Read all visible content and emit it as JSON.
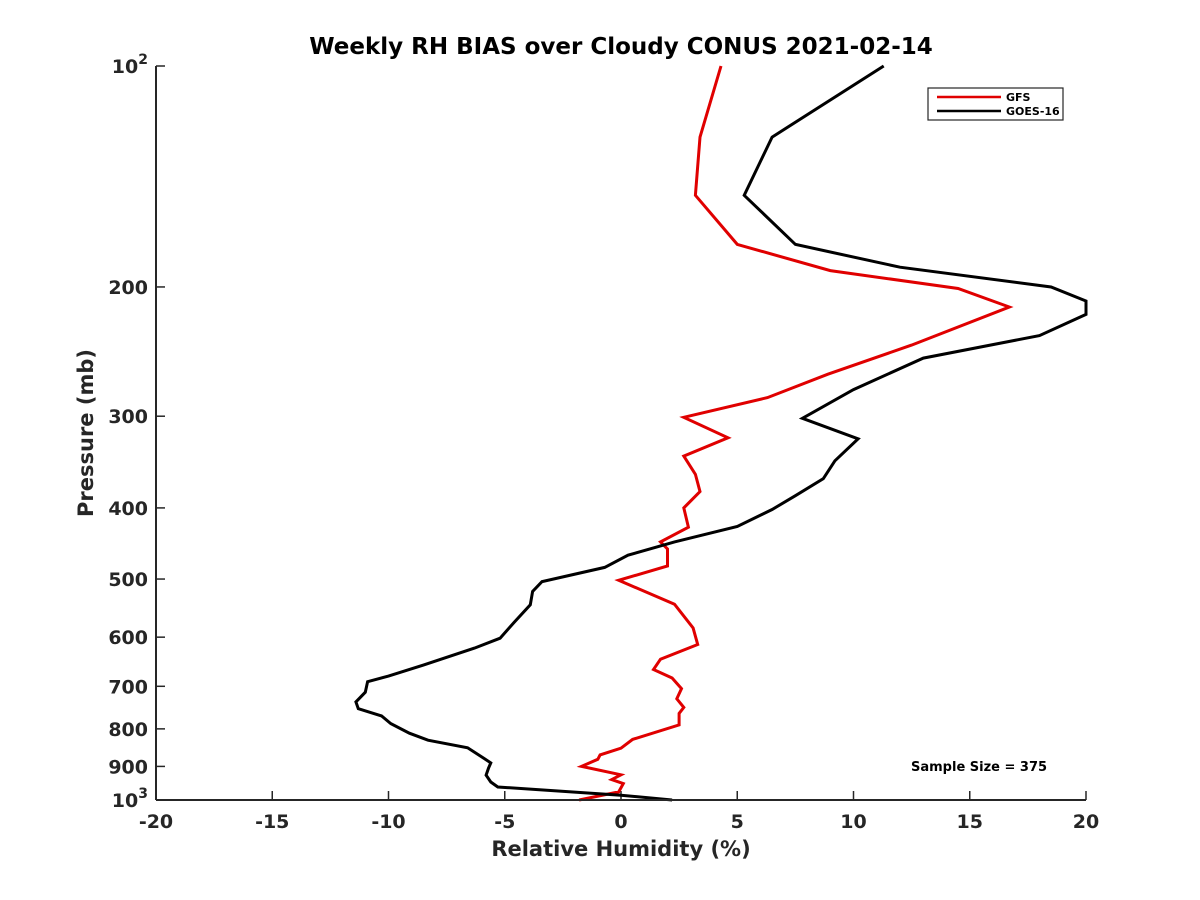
{
  "chart_data": {
    "type": "line",
    "title": "Weekly RH BIAS over Cloudy CONUS 2021-02-14",
    "xlabel": "Relative Humidity (%)",
    "ylabel": "Pressure (mb)",
    "xlim": [
      -20,
      20
    ],
    "ylim": [
      100,
      1000
    ],
    "y_scale": "log",
    "y_reversed": true,
    "x_ticks": [
      -20,
      -15,
      -10,
      -5,
      0,
      5,
      10,
      15,
      20
    ],
    "x_tick_labels": [
      "-20",
      "-15",
      "-10",
      "-5",
      "0",
      "5",
      "10",
      "15",
      "20"
    ],
    "y_ticks": [
      {
        "value": 100,
        "base": "10",
        "exp": "2"
      },
      {
        "value": 200,
        "label": "200"
      },
      {
        "value": 300,
        "label": "300"
      },
      {
        "value": 400,
        "label": "400"
      },
      {
        "value": 500,
        "label": "500"
      },
      {
        "value": 600,
        "label": "600"
      },
      {
        "value": 700,
        "label": "700"
      },
      {
        "value": 800,
        "label": "800"
      },
      {
        "value": 900,
        "label": "900"
      },
      {
        "value": 1000,
        "base": "10",
        "exp": "3"
      }
    ],
    "grid": false,
    "legend_position": "top-right",
    "annotation": "Sample Size = 375",
    "series": [
      {
        "name": "GFS",
        "color": "#e00000",
        "points": [
          [
            4.3,
            100
          ],
          [
            3.4,
            125
          ],
          [
            3.2,
            150
          ],
          [
            5.0,
            175
          ],
          [
            9.0,
            190
          ],
          [
            14.5,
            201
          ],
          [
            16.7,
            213
          ],
          [
            12.5,
            240
          ],
          [
            8.9,
            263
          ],
          [
            6.3,
            283
          ],
          [
            2.7,
            301
          ],
          [
            4.6,
            321
          ],
          [
            2.7,
            340
          ],
          [
            3.2,
            360
          ],
          [
            3.4,
            380
          ],
          [
            2.7,
            400
          ],
          [
            2.9,
            425
          ],
          [
            1.7,
            445
          ],
          [
            2.0,
            455
          ],
          [
            2.0,
            480
          ],
          [
            -0.1,
            502
          ],
          [
            2.3,
            541
          ],
          [
            3.1,
            583
          ],
          [
            3.3,
            614
          ],
          [
            1.7,
            643
          ],
          [
            1.4,
            664
          ],
          [
            2.2,
            682
          ],
          [
            2.6,
            705
          ],
          [
            2.4,
            728
          ],
          [
            2.7,
            748
          ],
          [
            2.5,
            762
          ],
          [
            2.5,
            790
          ],
          [
            0.5,
            827
          ],
          [
            0.0,
            850
          ],
          [
            -0.9,
            868
          ],
          [
            -1.0,
            880
          ],
          [
            -1.7,
            900
          ],
          [
            0.0,
            924
          ],
          [
            -0.4,
            938
          ],
          [
            0.1,
            950
          ],
          [
            -0.1,
            975
          ],
          [
            -1.8,
            1000
          ]
        ]
      },
      {
        "name": "GOES-16",
        "color": "#000000",
        "points": [
          [
            11.3,
            100
          ],
          [
            6.5,
            125
          ],
          [
            5.3,
            150
          ],
          [
            7.5,
            175
          ],
          [
            12.0,
            188
          ],
          [
            18.5,
            200
          ],
          [
            20.0,
            209
          ],
          [
            20.0,
            218
          ],
          [
            18.0,
            233
          ],
          [
            13.0,
            250
          ],
          [
            10.0,
            276
          ],
          [
            7.8,
            302
          ],
          [
            10.2,
            322
          ],
          [
            9.2,
            345
          ],
          [
            8.7,
            365
          ],
          [
            7.5,
            385
          ],
          [
            6.5,
            402
          ],
          [
            5.0,
            424
          ],
          [
            2.3,
            445
          ],
          [
            0.3,
            464
          ],
          [
            -0.7,
            482
          ],
          [
            -3.4,
            504
          ],
          [
            -3.8,
            520
          ],
          [
            -3.9,
            542
          ],
          [
            -4.6,
            573
          ],
          [
            -5.2,
            602
          ],
          [
            -6.3,
            621
          ],
          [
            -8.5,
            655
          ],
          [
            -10.0,
            678
          ],
          [
            -10.9,
            690
          ],
          [
            -11.0,
            713
          ],
          [
            -11.4,
            735
          ],
          [
            -11.3,
            751
          ],
          [
            -10.3,
            768
          ],
          [
            -9.9,
            787
          ],
          [
            -9.1,
            811
          ],
          [
            -8.3,
            829
          ],
          [
            -6.6,
            849
          ],
          [
            -5.9,
            877
          ],
          [
            -5.6,
            890
          ],
          [
            -5.7,
            905
          ],
          [
            -5.8,
            925
          ],
          [
            -5.6,
            945
          ],
          [
            -5.3,
            960
          ],
          [
            0.0,
            985
          ],
          [
            2.2,
            1000
          ]
        ]
      }
    ]
  }
}
